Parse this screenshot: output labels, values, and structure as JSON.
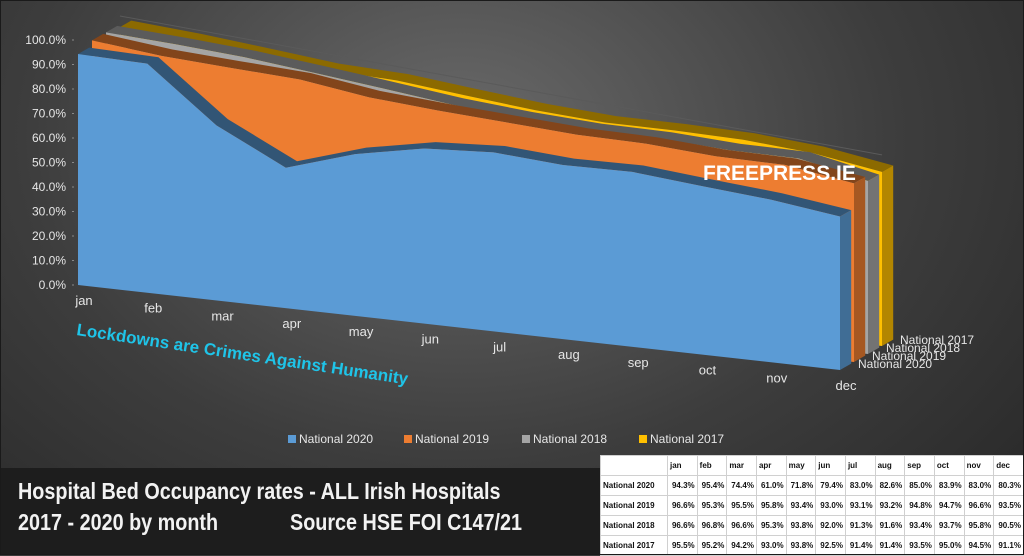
{
  "chart_data": {
    "type": "area",
    "categories": [
      "jan",
      "feb",
      "mar",
      "apr",
      "may",
      "jun",
      "jul",
      "aug",
      "sep",
      "oct",
      "nov",
      "dec"
    ],
    "series": [
      {
        "name": "National 2020",
        "values": [
          94.3,
          95.4,
          74.4,
          61.0,
          71.8,
          79.4,
          83.0,
          82.6,
          85.0,
          83.9,
          83.0,
          80.3
        ],
        "color": "#5b9bd5"
      },
      {
        "name": "National 2019",
        "values": [
          96.6,
          95.3,
          95.5,
          95.8,
          93.4,
          93.0,
          93.1,
          93.2,
          94.8,
          94.7,
          96.6,
          93.5
        ],
        "color": "#ed7d31"
      },
      {
        "name": "National 2018",
        "values": [
          96.6,
          96.8,
          96.6,
          95.3,
          93.8,
          92.0,
          91.3,
          91.6,
          93.4,
          93.7,
          95.8,
          90.5
        ],
        "color": "#a5a5a5"
      },
      {
        "name": "National 2017",
        "values": [
          95.5,
          95.2,
          94.2,
          93.0,
          93.8,
          92.5,
          91.4,
          91.4,
          93.5,
          95.0,
          94.5,
          91.1
        ],
        "color": "#ffc000"
      }
    ],
    "y_ticks": [
      "100.0%",
      "90.0%",
      "80.0%",
      "70.0%",
      "60.0%",
      "50.0%",
      "40.0%",
      "30.0%",
      "20.0%",
      "10.0%",
      "0.0%"
    ],
    "ylim": [
      0,
      100
    ],
    "legend_position": "bottom",
    "watermark": "FREEPRESS.IE",
    "annotation": "Lockdowns are Crimes Against Humanity",
    "series_axis_labels": [
      "National 2017",
      "National 2018",
      "National 2019",
      "National 2020"
    ]
  },
  "caption": {
    "line1": "Hospital Bed Occupancy rates - ALL Irish Hospitals",
    "line2": "2017 - 2020 by month",
    "source": "Source HSE FOI C147/21"
  },
  "table": {
    "headers": [
      "jan",
      "feb",
      "mar",
      "apr",
      "may",
      "jun",
      "jul",
      "aug",
      "sep",
      "oct",
      "nov",
      "dec"
    ],
    "rows": [
      {
        "label": "National 2020",
        "values": [
          "94.3%",
          "95.4%",
          "74.4%",
          "61.0%",
          "71.8%",
          "79.4%",
          "83.0%",
          "82.6%",
          "85.0%",
          "83.9%",
          "83.0%",
          "80.3%"
        ]
      },
      {
        "label": "National 2019",
        "values": [
          "96.6%",
          "95.3%",
          "95.5%",
          "95.8%",
          "93.4%",
          "93.0%",
          "93.1%",
          "93.2%",
          "94.8%",
          "94.7%",
          "96.6%",
          "93.5%"
        ]
      },
      {
        "label": "National 2018",
        "values": [
          "96.6%",
          "96.8%",
          "96.6%",
          "95.3%",
          "93.8%",
          "92.0%",
          "91.3%",
          "91.6%",
          "93.4%",
          "93.7%",
          "95.8%",
          "90.5%"
        ]
      },
      {
        "label": "National 2017",
        "values": [
          "95.5%",
          "95.2%",
          "94.2%",
          "93.0%",
          "93.8%",
          "92.5%",
          "91.4%",
          "91.4%",
          "93.5%",
          "95.0%",
          "94.5%",
          "91.1%"
        ]
      }
    ]
  }
}
